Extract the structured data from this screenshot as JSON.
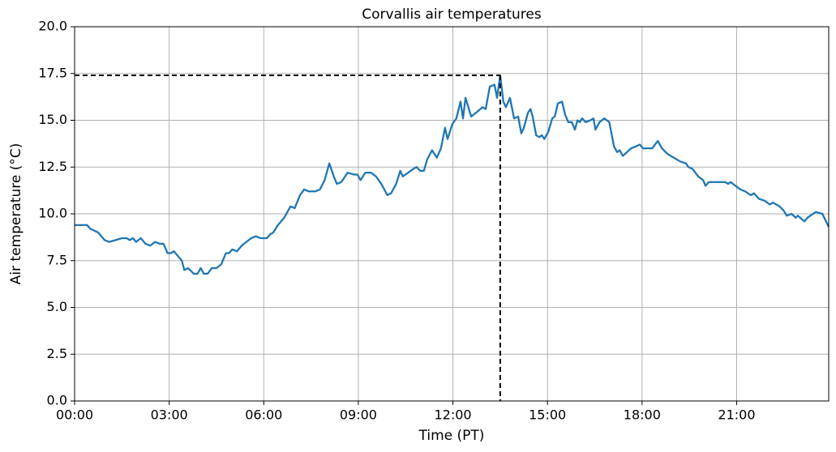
{
  "chart_data": {
    "type": "line",
    "title": "Corvallis air temperatures",
    "xlabel": "Time (PT)",
    "ylabel": "Air temperature (°C)",
    "color": "#1f77b4",
    "grid": true,
    "x": [
      0,
      0.4,
      0.5,
      0.75,
      0.95,
      1.1,
      1.3,
      1.5,
      1.65,
      1.75,
      1.85,
      1.95,
      2.1,
      2.25,
      2.4,
      2.55,
      2.7,
      2.82,
      2.95,
      3.05,
      3.15,
      3.25,
      3.4,
      3.48,
      3.6,
      3.78,
      3.9,
      4.0,
      4.1,
      4.22,
      4.35,
      4.5,
      4.65,
      4.8,
      4.9,
      5.0,
      5.15,
      5.3,
      5.45,
      5.6,
      5.75,
      5.9,
      6.1,
      6.2,
      6.3,
      6.45,
      6.65,
      6.85,
      6.98,
      7.15,
      7.28,
      7.43,
      7.63,
      7.78,
      7.93,
      8.08,
      8.22,
      8.32,
      8.46,
      8.66,
      8.86,
      8.97,
      9.07,
      9.22,
      9.4,
      9.56,
      9.73,
      9.92,
      10.04,
      10.2,
      10.33,
      10.41,
      10.58,
      10.74,
      10.85,
      10.96,
      11.08,
      11.18,
      11.34,
      11.49,
      11.62,
      11.75,
      11.83,
      11.98,
      12.11,
      12.24,
      12.32,
      12.4,
      12.58,
      12.73,
      12.94,
      13.04,
      13.17,
      13.32,
      13.4,
      13.5,
      13.6,
      13.68,
      13.81,
      13.94,
      14.07,
      14.17,
      14.25,
      14.38,
      14.46,
      14.53,
      14.64,
      14.74,
      14.82,
      14.9,
      15.03,
      15.15,
      15.23,
      15.33,
      15.46,
      15.56,
      15.66,
      15.77,
      15.87,
      15.95,
      16.02,
      16.1,
      16.21,
      16.36,
      16.46,
      16.52,
      16.65,
      16.8,
      16.96,
      17.11,
      17.21,
      17.29,
      17.39,
      17.46,
      17.65,
      17.8,
      17.93,
      18.03,
      18.32,
      18.5,
      18.63,
      18.81,
      19.01,
      19.21,
      19.39,
      19.47,
      19.6,
      19.78,
      19.94,
      20.01,
      20.12,
      20.63,
      20.73,
      20.81,
      20.96,
      21.12,
      21.27,
      21.45,
      21.55,
      21.71,
      21.89,
      22.05,
      22.15,
      22.36,
      22.48,
      22.59,
      22.74,
      22.87,
      22.94,
      23.15,
      23.25,
      23.51,
      23.72,
      23.92
    ],
    "values": [
      9.4,
      9.4,
      9.2,
      9.0,
      8.6,
      8.5,
      8.6,
      8.7,
      8.7,
      8.6,
      8.7,
      8.5,
      8.7,
      8.4,
      8.3,
      8.5,
      8.4,
      8.4,
      7.9,
      7.9,
      8.0,
      7.8,
      7.5,
      7.0,
      7.1,
      6.8,
      6.8,
      7.1,
      6.8,
      6.8,
      7.1,
      7.1,
      7.3,
      7.9,
      7.9,
      8.1,
      8.0,
      8.3,
      8.5,
      8.7,
      8.8,
      8.7,
      8.7,
      8.9,
      9.0,
      9.4,
      9.8,
      10.4,
      10.3,
      11.0,
      11.3,
      11.2,
      11.2,
      11.3,
      11.8,
      12.7,
      12.0,
      11.6,
      11.7,
      12.2,
      12.1,
      12.1,
      11.8,
      12.2,
      12.2,
      12.0,
      11.6,
      11.0,
      11.1,
      11.6,
      12.3,
      12.0,
      12.2,
      12.4,
      12.5,
      12.3,
      12.3,
      12.9,
      13.4,
      13.0,
      13.5,
      14.6,
      14.0,
      14.8,
      15.1,
      16.0,
      15.1,
      16.2,
      15.2,
      15.4,
      15.7,
      15.6,
      16.8,
      16.9,
      16.2,
      17.4,
      16.0,
      15.7,
      16.2,
      15.1,
      15.2,
      14.3,
      14.6,
      15.4,
      15.6,
      15.2,
      14.2,
      14.1,
      14.2,
      14.0,
      14.4,
      15.1,
      15.2,
      15.9,
      16.0,
      15.3,
      14.9,
      14.9,
      14.5,
      15.0,
      14.9,
      15.1,
      14.9,
      15.0,
      15.1,
      14.5,
      14.9,
      15.1,
      14.9,
      13.6,
      13.3,
      13.4,
      13.1,
      13.2,
      13.5,
      13.6,
      13.7,
      13.5,
      13.5,
      13.9,
      13.5,
      13.2,
      13.0,
      12.8,
      12.7,
      12.5,
      12.4,
      12.0,
      11.8,
      11.5,
      11.7,
      11.7,
      11.6,
      11.7,
      11.5,
      11.3,
      11.2,
      11.0,
      11.1,
      10.8,
      10.7,
      10.5,
      10.6,
      10.4,
      10.2,
      9.9,
      10.0,
      9.8,
      9.9,
      9.6,
      9.8,
      10.1,
      10.0,
      9.3
    ],
    "max_point": {
      "x": 13.5,
      "y": 17.4
    },
    "xlim": [
      0,
      23.92
    ],
    "ylim": [
      0,
      20
    ],
    "xticks": [
      {
        "value": 0,
        "label": "00:00"
      },
      {
        "value": 3,
        "label": "03:00"
      },
      {
        "value": 6,
        "label": "06:00"
      },
      {
        "value": 9,
        "label": "09:00"
      },
      {
        "value": 12,
        "label": "12:00"
      },
      {
        "value": 15,
        "label": "15:00"
      },
      {
        "value": 18,
        "label": "18:00"
      },
      {
        "value": 21,
        "label": "21:00"
      }
    ],
    "yticks": [
      {
        "value": 0,
        "label": "0.0"
      },
      2.5,
      {
        "value": 5,
        "label": "5.0"
      },
      7.5,
      {
        "value": 10,
        "label": "10.0"
      },
      12.5,
      {
        "value": 15,
        "label": "15.0"
      },
      17.5,
      {
        "value": 20,
        "label": "20.0"
      }
    ]
  }
}
